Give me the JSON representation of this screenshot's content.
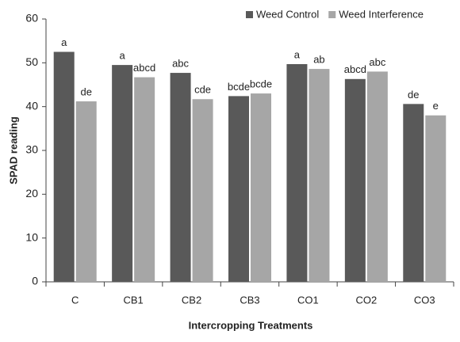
{
  "chart_data": {
    "type": "bar",
    "categories": [
      "C",
      "CB1",
      "CB2",
      "CB3",
      "CO1",
      "CO2",
      "CO3"
    ],
    "series": [
      {
        "name": "Weed Control",
        "color": "#595959",
        "values": [
          52.5,
          49.5,
          47.7,
          42.4,
          49.7,
          46.3,
          40.6
        ],
        "letters": [
          "a",
          "a",
          "abc",
          "bcde",
          "a",
          "abcd",
          "de"
        ]
      },
      {
        "name": "Weed Interference",
        "color": "#a6a6a6",
        "values": [
          41.2,
          46.7,
          41.7,
          43.0,
          48.6,
          48.0,
          38.0
        ],
        "letters": [
          "de",
          "abcd",
          "cde",
          "bcde",
          "ab",
          "abc",
          "e"
        ]
      }
    ],
    "ylim": [
      0,
      60
    ],
    "yticks": [
      0,
      10,
      20,
      30,
      40,
      50,
      60
    ],
    "y_label": "SPAD reading",
    "x_label": "Intercropping Treatments",
    "grid": false,
    "legend": "top-right"
  }
}
